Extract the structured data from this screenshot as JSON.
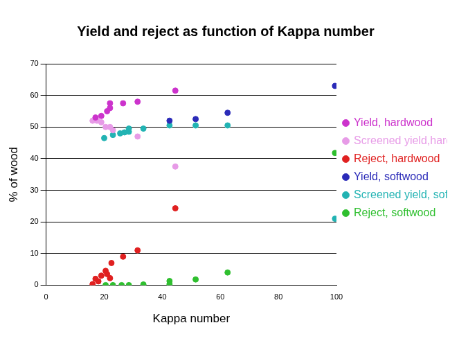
{
  "chart_data": {
    "type": "scatter",
    "title": "Yield and reject as function of Kappa number",
    "x_label": "Kappa number",
    "y_label": "% of wood",
    "xlim": [
      0,
      100
    ],
    "xticks": [
      0,
      20,
      40,
      60,
      80,
      100
    ],
    "ylim": [
      0,
      70
    ],
    "yticks": [
      0,
      10,
      20,
      30,
      40,
      50,
      60,
      70
    ],
    "grid": "y",
    "legend": "right",
    "marker": "circle",
    "series": [
      {
        "name": "Yield, hardwood",
        "color": "#cc33cc",
        "x": [
          17,
          19,
          21,
          22,
          22,
          26.5,
          31.5,
          44.5
        ],
        "values": [
          53,
          53.5,
          55,
          56,
          57.5,
          57.5,
          58,
          61.5
        ]
      },
      {
        "name": "Screened yield,hardwood",
        "color": "#e79be7",
        "x": [
          16,
          17.5,
          19,
          20.5,
          22,
          23,
          31.5,
          44.5
        ],
        "values": [
          52,
          52,
          51.5,
          50,
          50,
          49,
          47,
          37.5
        ]
      },
      {
        "name": "Reject, hardwood",
        "color": "#e02020",
        "x": [
          16,
          17,
          18,
          19,
          20.5,
          21,
          22,
          22.5,
          26.5,
          31.5,
          44.5
        ],
        "values": [
          0.3,
          2,
          1.2,
          3,
          4.5,
          3.5,
          2.2,
          7,
          9,
          11,
          24.3
        ]
      },
      {
        "name": "Yield, softwood",
        "color": "#2b2bb8",
        "x": [
          42.5,
          51.5,
          62.5,
          99.5
        ],
        "values": [
          52,
          52.5,
          54.5,
          63
        ]
      },
      {
        "name": "Screened yield, softwood",
        "color": "#22b3b3",
        "x": [
          20,
          23,
          25.5,
          27,
          28.5,
          28.5,
          33.5,
          42.5,
          51.5,
          62.5,
          99.5
        ],
        "values": [
          46.5,
          47.5,
          48,
          48.3,
          48.5,
          49.5,
          49.5,
          50.5,
          50.5,
          50.5,
          21
        ]
      },
      {
        "name": "Reject, softwood",
        "color": "#2fbf2f",
        "x": [
          20.5,
          23,
          26,
          28.5,
          33.5,
          42.5,
          42.5,
          51.5,
          62.5,
          99.5
        ],
        "values": [
          0,
          0,
          0,
          0,
          0.2,
          1.3,
          0.3,
          1.8,
          4,
          41.8
        ]
      }
    ]
  }
}
